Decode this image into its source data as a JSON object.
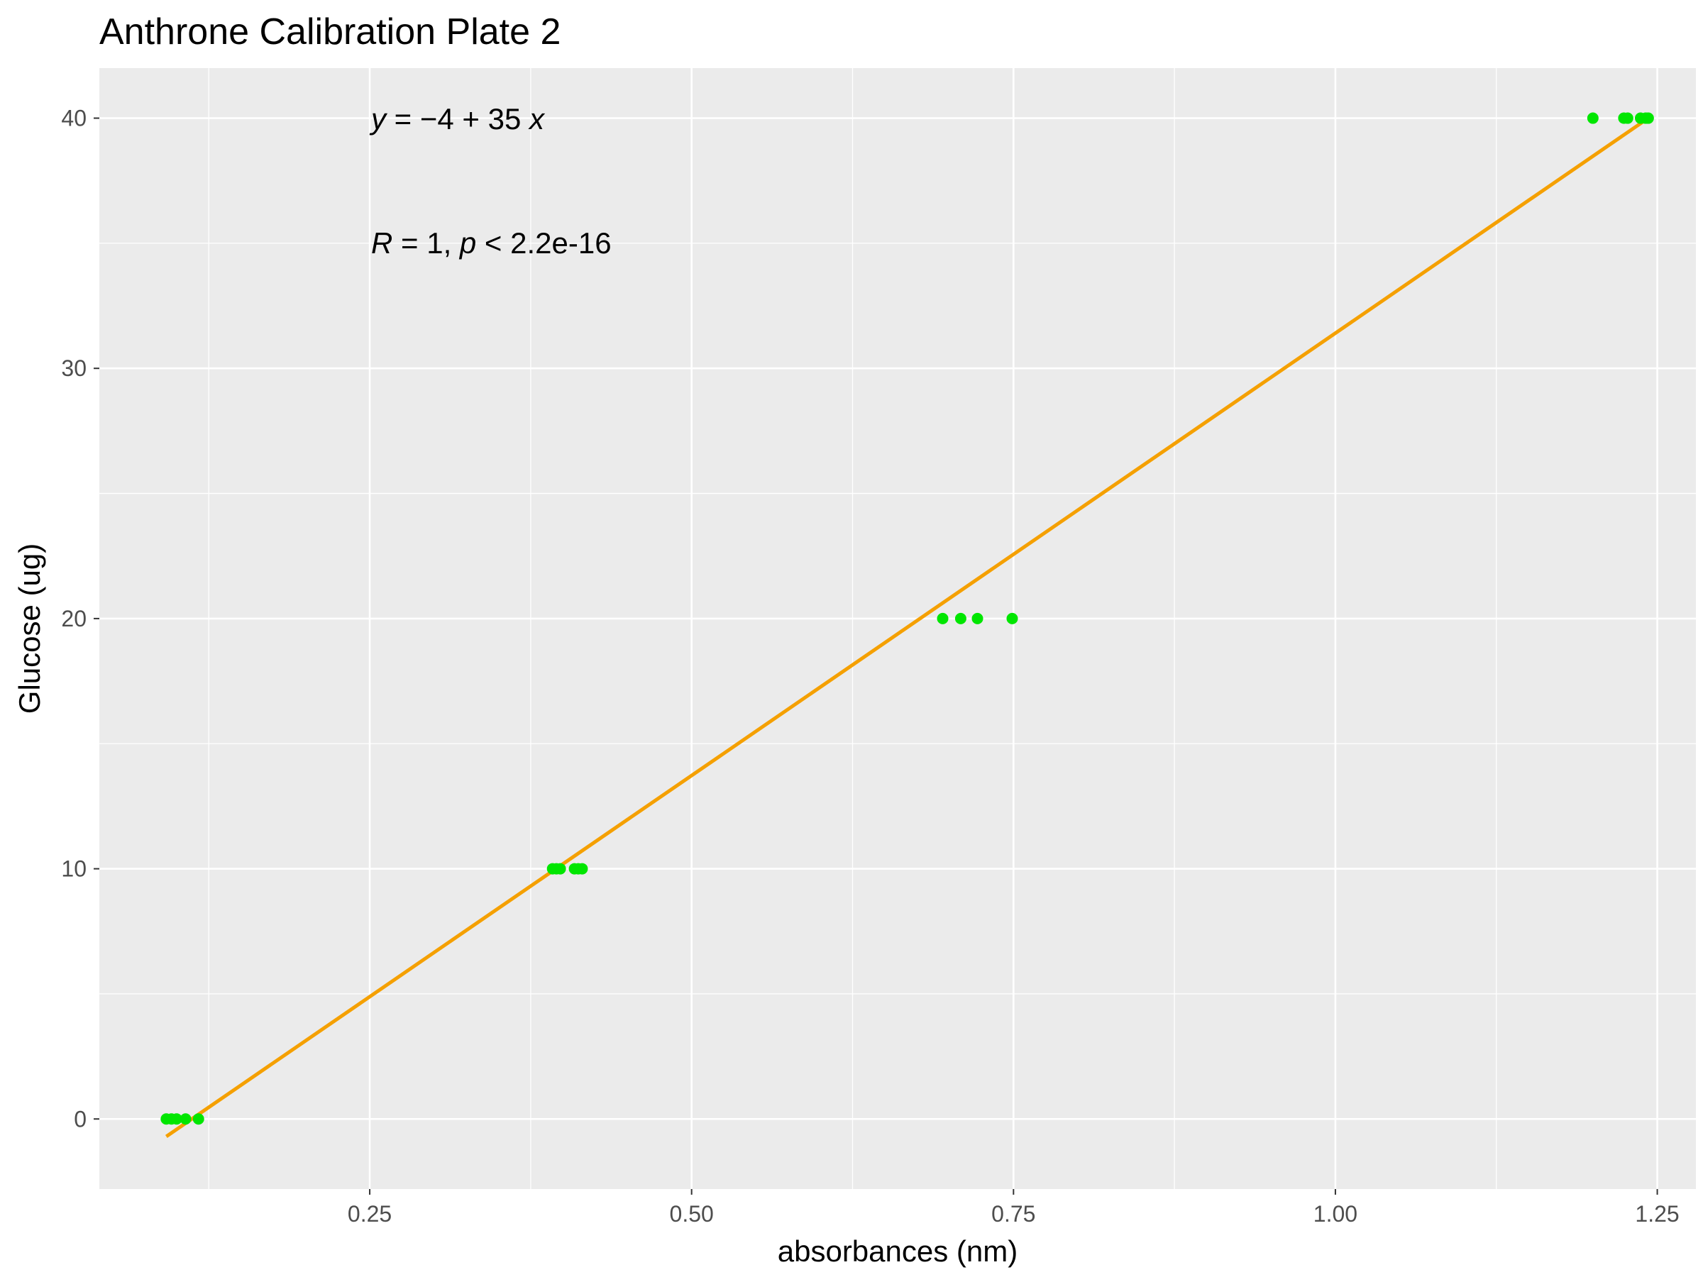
{
  "chart_data": {
    "type": "scatter",
    "title": "Anthrone Calibration Plate 2",
    "xlabel": "absorbances (nm)",
    "ylabel": "Glucose (ug)",
    "xlim": [
      0.04,
      1.28
    ],
    "ylim": [
      -2.8,
      42.0
    ],
    "x_ticks": [
      0.25,
      0.5,
      0.75,
      1.0,
      1.25
    ],
    "x_tick_labels": [
      "0.25",
      "0.50",
      "0.75",
      "1.00",
      "1.25"
    ],
    "y_ticks": [
      0,
      10,
      20,
      30,
      40
    ],
    "y_tick_labels": [
      "0",
      "10",
      "20",
      "30",
      "40"
    ],
    "grid": true,
    "panel_background": "#ebebeb",
    "grid_color": "#ffffff",
    "point_color": "#00e600",
    "line_color": "#f5a000",
    "points": [
      {
        "x": 0.092,
        "y": 0
      },
      {
        "x": 0.096,
        "y": 0
      },
      {
        "x": 0.1,
        "y": 0
      },
      {
        "x": 0.107,
        "y": 0
      },
      {
        "x": 0.117,
        "y": 0
      },
      {
        "x": 0.392,
        "y": 10
      },
      {
        "x": 0.395,
        "y": 10
      },
      {
        "x": 0.398,
        "y": 10
      },
      {
        "x": 0.409,
        "y": 10
      },
      {
        "x": 0.412,
        "y": 10
      },
      {
        "x": 0.415,
        "y": 10
      },
      {
        "x": 0.695,
        "y": 20
      },
      {
        "x": 0.709,
        "y": 20
      },
      {
        "x": 0.722,
        "y": 20
      },
      {
        "x": 0.749,
        "y": 20
      },
      {
        "x": 1.2,
        "y": 40
      },
      {
        "x": 1.224,
        "y": 40
      },
      {
        "x": 1.227,
        "y": 40
      },
      {
        "x": 1.237,
        "y": 40
      },
      {
        "x": 1.241,
        "y": 40
      },
      {
        "x": 1.243,
        "y": 40
      }
    ],
    "fit_line": {
      "x": [
        0.092,
        1.243
      ],
      "y": [
        -0.7,
        40.0
      ]
    },
    "annotations": {
      "equation": "y = −4 + 35 x",
      "equation_parts": {
        "y_var": "y",
        "eq": " = −4 + 35 ",
        "x_var": "x"
      },
      "stats": "R = 1, p < 2.2e-16",
      "stats_parts": {
        "r_var": "R",
        "mid": " = 1, ",
        "p_var": "p",
        "end": " < 2.2e-16"
      }
    }
  }
}
